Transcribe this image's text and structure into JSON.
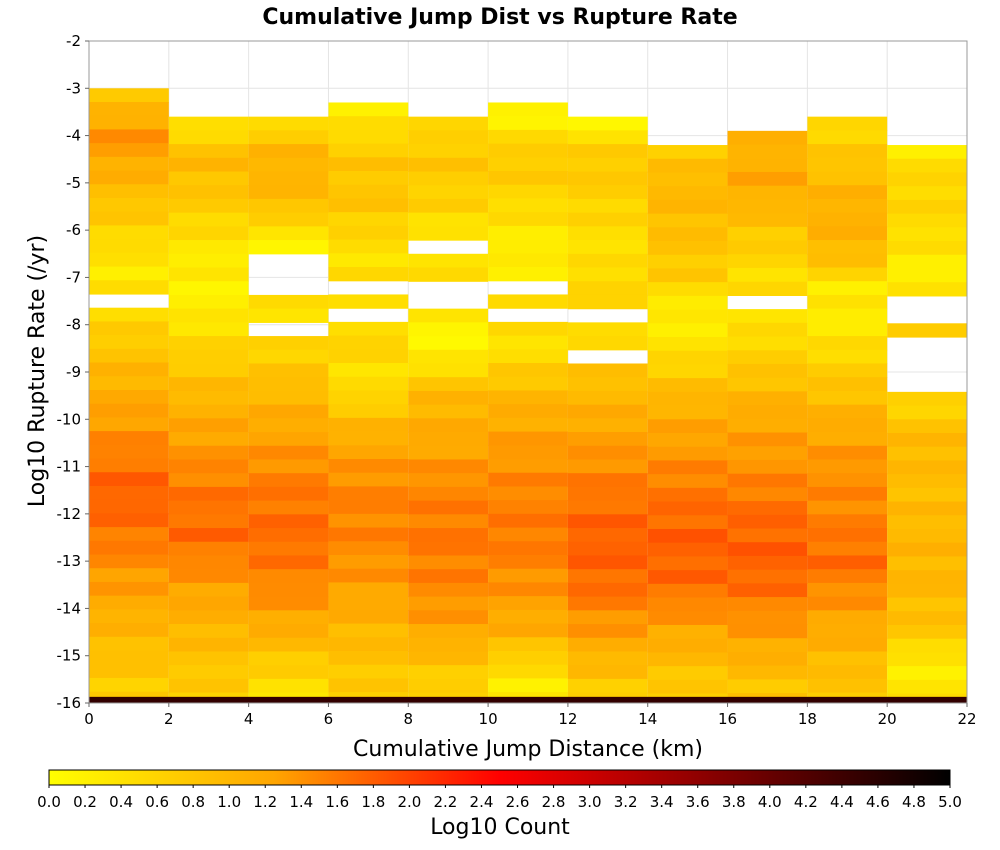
{
  "chart_data": {
    "type": "heatmap",
    "title": "Cumulative Jump Dist vs Rupture Rate",
    "xlabel": "Cumulative Jump Distance (km)",
    "ylabel": "Log10 Rupture Rate (/yr)",
    "xlim": [
      0,
      22
    ],
    "ylim": [
      -16,
      -2
    ],
    "xticks": [
      0,
      2,
      4,
      6,
      8,
      10,
      12,
      14,
      16,
      18,
      20,
      22
    ],
    "yticks": [
      -2,
      -3,
      -4,
      -5,
      -6,
      -7,
      -8,
      -9,
      -10,
      -11,
      -12,
      -13,
      -14,
      -15,
      -16
    ],
    "grid": true,
    "x_bin_width": 2,
    "y_bin_height": 0.29,
    "colorbar": {
      "label": "Log10 Count",
      "range": [
        0,
        5
      ],
      "ticks": [
        0.0,
        0.2,
        0.4,
        0.6,
        0.8,
        1.0,
        1.2,
        1.4,
        1.6,
        1.8,
        2.0,
        2.2,
        2.4,
        2.6,
        2.8,
        3.0,
        3.2,
        3.4,
        3.6,
        3.8,
        4.0,
        4.2,
        4.4,
        4.6,
        4.8,
        5.0
      ],
      "tick_labels": [
        "0.0",
        "0.2",
        "0.4",
        "0.6",
        "0.8",
        "1.0",
        "1.2",
        "1.4",
        "1.6",
        "1.8",
        "2.0",
        "2.2",
        "2.4",
        "2.6",
        "2.8",
        "3.0",
        "3.2",
        "3.4",
        "3.6",
        "3.8",
        "4.0",
        "4.2",
        "4.4",
        "4.6",
        "4.8",
        "5.0"
      ],
      "colors": [
        "#ffff00",
        "#ffa500",
        "#ff0000",
        "#800000",
        "#000000"
      ],
      "placement": "bottom"
    },
    "columns": [
      {
        "x_start": 0,
        "y_top": -3.0,
        "gaps": [
          [
            -7.3,
            -7.6
          ]
        ],
        "anchors": [
          [
            -3.1,
            0.7
          ],
          [
            -4.0,
            1.4
          ],
          [
            -5.0,
            1.0
          ],
          [
            -6.0,
            0.6
          ],
          [
            -6.8,
            0.3
          ],
          [
            -8.0,
            0.6
          ],
          [
            -9.0,
            1.0
          ],
          [
            -10.0,
            1.3
          ],
          [
            -11.5,
            1.8
          ],
          [
            -12.5,
            1.6
          ],
          [
            -13.5,
            1.3
          ],
          [
            -14.5,
            1.0
          ],
          [
            -15.7,
            0.7
          ]
        ]
      },
      {
        "x_start": 2,
        "y_top": -3.6,
        "gaps": [],
        "anchors": [
          [
            -3.7,
            0.3
          ],
          [
            -4.5,
            1.0
          ],
          [
            -5.5,
            0.7
          ],
          [
            -6.5,
            0.3
          ],
          [
            -7.5,
            0.2
          ],
          [
            -8.5,
            0.6
          ],
          [
            -9.5,
            1.0
          ],
          [
            -10.5,
            1.3
          ],
          [
            -11.5,
            1.6
          ],
          [
            -12.5,
            1.7
          ],
          [
            -13.5,
            1.3
          ],
          [
            -14.5,
            1.0
          ],
          [
            -15.7,
            0.7
          ]
        ]
      },
      {
        "x_start": 4,
        "y_top": -3.6,
        "gaps": [
          [
            -6.5,
            -7.3
          ],
          [
            -7.9,
            -8.1
          ]
        ],
        "anchors": [
          [
            -3.7,
            0.5
          ],
          [
            -4.5,
            1.1
          ],
          [
            -5.5,
            0.9
          ],
          [
            -6.2,
            0.2
          ],
          [
            -7.5,
            0.4
          ],
          [
            -8.5,
            0.6
          ],
          [
            -9.5,
            1.0
          ],
          [
            -10.5,
            1.3
          ],
          [
            -11.5,
            1.6
          ],
          [
            -12.5,
            1.7
          ],
          [
            -13.5,
            1.5
          ],
          [
            -14.5,
            1.1
          ],
          [
            -15.7,
            0.4
          ]
        ]
      },
      {
        "x_start": 6,
        "y_top": -3.3,
        "gaps": [
          [
            -7.0,
            -7.3
          ],
          [
            -7.6,
            -7.9
          ]
        ],
        "anchors": [
          [
            -3.6,
            0.3
          ],
          [
            -4.5,
            0.8
          ],
          [
            -5.5,
            0.8
          ],
          [
            -6.5,
            0.4
          ],
          [
            -7.5,
            0.5
          ],
          [
            -8.5,
            0.6
          ],
          [
            -9.2,
            0.4
          ],
          [
            -10.5,
            1.2
          ],
          [
            -11.5,
            1.5
          ],
          [
            -12.5,
            1.5
          ],
          [
            -13.5,
            1.3
          ],
          [
            -14.5,
            1.0
          ],
          [
            -15.7,
            0.7
          ]
        ]
      },
      {
        "x_start": 8,
        "y_top": -3.6,
        "gaps": [
          [
            -6.2,
            -6.5
          ],
          [
            -7.0,
            -7.6
          ]
        ],
        "anchors": [
          [
            -3.7,
            0.5
          ],
          [
            -4.5,
            0.8
          ],
          [
            -5.5,
            0.6
          ],
          [
            -6.0,
            0.4
          ],
          [
            -6.7,
            0.5
          ],
          [
            -8.5,
            0.1
          ],
          [
            -9.5,
            1.0
          ],
          [
            -10.5,
            1.2
          ],
          [
            -11.5,
            1.5
          ],
          [
            -12.5,
            1.6
          ],
          [
            -13.5,
            1.5
          ],
          [
            -14.5,
            1.2
          ],
          [
            -15.7,
            0.6
          ]
        ]
      },
      {
        "x_start": 10,
        "y_top": -3.3,
        "gaps": [
          [
            -7.0,
            -7.3
          ],
          [
            -7.6,
            -7.9
          ]
        ],
        "anchors": [
          [
            -3.5,
            0.1
          ],
          [
            -4.5,
            0.8
          ],
          [
            -5.5,
            0.5
          ],
          [
            -6.5,
            0.2
          ],
          [
            -7.5,
            0.5
          ],
          [
            -8.5,
            0.4
          ],
          [
            -9.5,
            1.0
          ],
          [
            -10.5,
            1.3
          ],
          [
            -11.5,
            1.5
          ],
          [
            -12.5,
            1.6
          ],
          [
            -13.5,
            1.4
          ],
          [
            -14.5,
            1.1
          ],
          [
            -15.5,
            0.3
          ]
        ]
      },
      {
        "x_start": 12,
        "y_top": -3.6,
        "gaps": [
          [
            -7.6,
            -7.9
          ],
          [
            -8.4,
            -8.7
          ]
        ],
        "anchors": [
          [
            -3.8,
            0.2
          ],
          [
            -4.5,
            0.8
          ],
          [
            -5.5,
            0.6
          ],
          [
            -6.5,
            0.4
          ],
          [
            -7.2,
            0.6
          ],
          [
            -8.1,
            0.4
          ],
          [
            -9.2,
            0.9
          ],
          [
            -10.5,
            1.3
          ],
          [
            -11.5,
            1.6
          ],
          [
            -12.5,
            1.8
          ],
          [
            -13.5,
            1.7
          ],
          [
            -14.5,
            1.3
          ],
          [
            -15.7,
            0.7
          ]
        ]
      },
      {
        "x_start": 14,
        "y_top": -4.2,
        "gaps": [],
        "anchors": [
          [
            -4.3,
            0.7
          ],
          [
            -5.0,
            1.0
          ],
          [
            -6.0,
            0.9
          ],
          [
            -7.0,
            0.7
          ],
          [
            -7.7,
            0.2
          ],
          [
            -8.5,
            0.4
          ],
          [
            -9.5,
            1.0
          ],
          [
            -10.5,
            1.3
          ],
          [
            -11.5,
            1.6
          ],
          [
            -12.5,
            1.8
          ],
          [
            -13.5,
            1.7
          ],
          [
            -14.5,
            1.2
          ],
          [
            -15.7,
            0.7
          ]
        ]
      },
      {
        "x_start": 16,
        "y_top": -3.9,
        "gaps": [
          [
            -7.3,
            -7.6
          ]
        ],
        "anchors": [
          [
            -4.0,
            1.0
          ],
          [
            -5.0,
            1.2
          ],
          [
            -6.0,
            0.8
          ],
          [
            -6.8,
            0.5
          ],
          [
            -8.0,
            0.4
          ],
          [
            -9.0,
            0.8
          ],
          [
            -10.0,
            1.2
          ],
          [
            -11.0,
            1.4
          ],
          [
            -12.0,
            1.7
          ],
          [
            -12.8,
            1.8
          ],
          [
            -13.5,
            1.7
          ],
          [
            -14.5,
            1.3
          ],
          [
            -15.7,
            0.8
          ]
        ]
      },
      {
        "x_start": 18,
        "y_top": -3.6,
        "gaps": [],
        "anchors": [
          [
            -3.7,
            0.5
          ],
          [
            -4.5,
            0.8
          ],
          [
            -5.5,
            1.1
          ],
          [
            -6.5,
            1.0
          ],
          [
            -7.2,
            0.3
          ],
          [
            -8.1,
            0.3
          ],
          [
            -9.0,
            0.7
          ],
          [
            -10.0,
            1.1
          ],
          [
            -11.0,
            1.4
          ],
          [
            -12.0,
            1.5
          ],
          [
            -13.0,
            1.7
          ],
          [
            -14.0,
            1.3
          ],
          [
            -15.0,
            1.0
          ],
          [
            -15.7,
            0.8
          ]
        ]
      },
      {
        "x_start": 20,
        "y_top": -4.2,
        "gaps": [
          [
            -7.3,
            -7.9
          ],
          [
            -8.2,
            -9.3
          ]
        ],
        "anchors": [
          [
            -4.3,
            0.3
          ],
          [
            -5.0,
            0.6
          ],
          [
            -6.0,
            0.5
          ],
          [
            -7.0,
            0.2
          ],
          [
            -8.0,
            0.7
          ],
          [
            -9.5,
            0.5
          ],
          [
            -10.5,
            1.0
          ],
          [
            -11.5,
            0.9
          ],
          [
            -12.5,
            1.0
          ],
          [
            -13.5,
            1.0
          ],
          [
            -14.5,
            0.8
          ],
          [
            -15.2,
            0.2
          ],
          [
            -15.7,
            0.4
          ]
        ]
      }
    ],
    "bottom_row": {
      "y_range": [
        -16.0,
        -15.87
      ],
      "value": 4.5
    }
  }
}
